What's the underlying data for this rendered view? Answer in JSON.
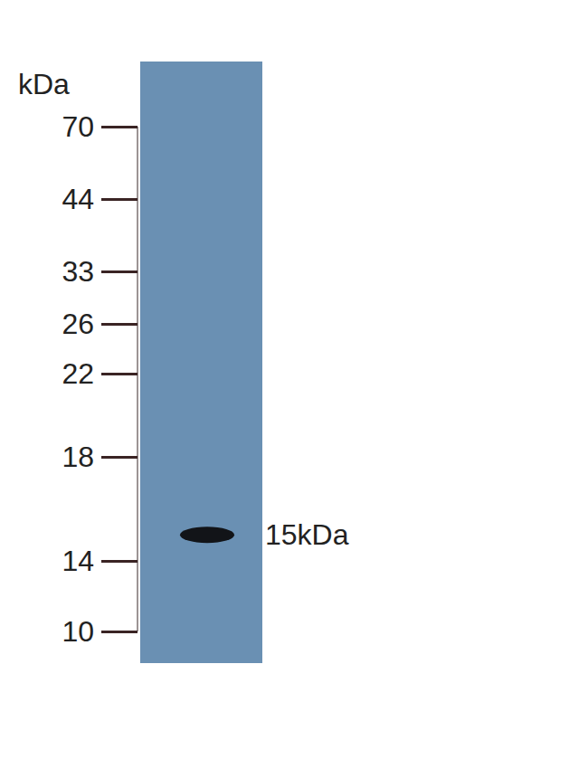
{
  "chart_data": {
    "type": "blot",
    "y_label": "kDa",
    "yticks": [
      70,
      44,
      33,
      26,
      22,
      18,
      14,
      10
    ],
    "ylim": [
      10,
      70
    ],
    "bands": [
      {
        "value": 15,
        "label": "15kDa"
      }
    ],
    "color": "#6a90b3"
  }
}
